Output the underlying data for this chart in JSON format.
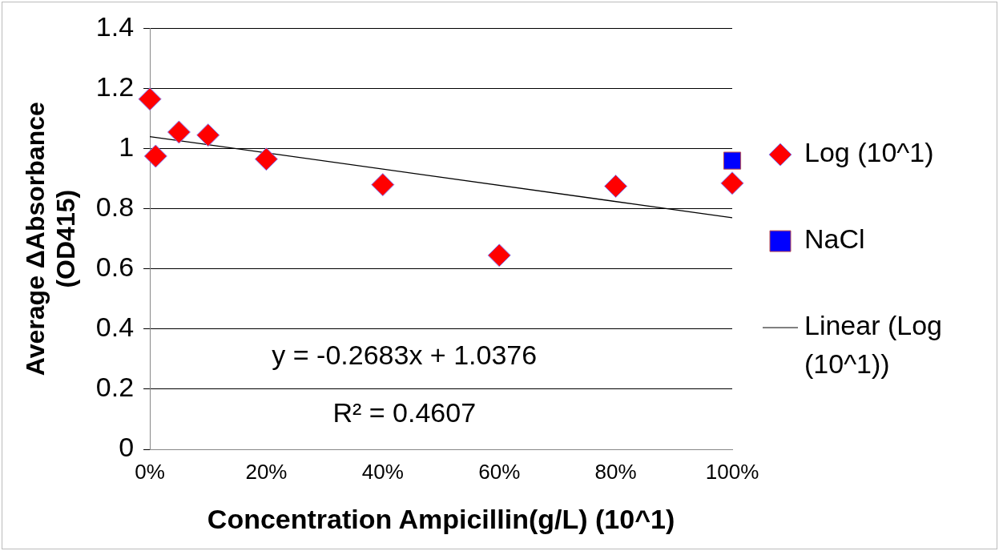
{
  "chart_data": {
    "type": "scatter",
    "xlabel": "Concentration Ampicillin(g/L) (10^1)",
    "ylabel": "Average ΔAbsorbance (OD415)",
    "series": [
      {
        "name": "Log (10^1)",
        "type": "scatter",
        "color": "#ff0000",
        "marker": "diamond",
        "x": [
          0,
          0.01,
          0.05,
          0.1,
          0.2,
          0.4,
          0.6,
          0.8,
          1
        ],
        "values": [
          1.165,
          0.975,
          1.055,
          1.045,
          0.965,
          0.88,
          0.645,
          0.875,
          0.885
        ]
      },
      {
        "name": "NaCl",
        "type": "scatter",
        "color": "#0000ff",
        "marker": "square",
        "x": [
          1
        ],
        "values": [
          0.96
        ]
      },
      {
        "name": "Linear (Log (10^1))",
        "type": "line",
        "color": "#000000",
        "line_style": "solid",
        "marker": "none",
        "x": [
          0,
          1
        ],
        "values": [
          1.04,
          0.77
        ]
      }
    ],
    "xlim": [
      0,
      1
    ],
    "xticks": [
      {
        "value": 0,
        "label": "0%"
      },
      {
        "value": 0.2,
        "label": "20%"
      },
      {
        "value": 0.4,
        "label": "40%"
      },
      {
        "value": 0.6,
        "label": "60%"
      },
      {
        "value": 0.8,
        "label": "80%"
      },
      {
        "value": 1,
        "label": "100%"
      }
    ],
    "ylim": [
      0,
      1.4
    ],
    "yticks": [
      0,
      0.2,
      0.4,
      0.6,
      0.8,
      1,
      1.2,
      1.4
    ],
    "grid": "y",
    "legend": "right",
    "annotations": [
      "y = -0.2683x + 1.0376",
      "R² = 0.4607"
    ]
  }
}
